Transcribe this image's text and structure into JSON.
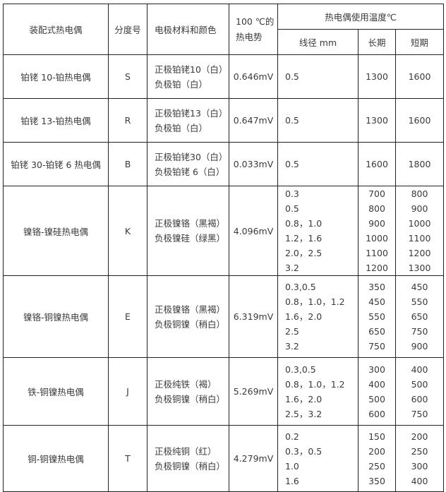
{
  "header": {
    "type": "装配式热电偶",
    "grade": "分度号",
    "material": "电极材料和颜色",
    "emf": "100 ℃的热电势",
    "emf_line1": "100 ℃的",
    "emf_line2": "热电势",
    "temp_group": "热电偶使用温度℃",
    "diameter": "线径 mm",
    "long_term": "长期",
    "short_term": "短期"
  },
  "rows": [
    {
      "type": "铂铑 10-铂热电偶",
      "grade": "S",
      "material": [
        "正极铂铑10（白）",
        "负极铂（白）"
      ],
      "emf": "0.646mV",
      "diameters": [
        "0.5"
      ],
      "long": [
        "1300"
      ],
      "short": [
        "1600"
      ]
    },
    {
      "type": "铂铑 13-铂热电偶",
      "grade": "R",
      "material": [
        "正极铂铑13（白）",
        "负极铂（白）"
      ],
      "emf": "0.647mV",
      "diameters": [
        "0.5"
      ],
      "long": [
        "1300"
      ],
      "short": [
        "1600"
      ]
    },
    {
      "type": "铂铑 30-铂铑 6 热电偶",
      "grade": "B",
      "material": [
        "正极铂铑30（白）",
        "负极铂铑 6（白）"
      ],
      "emf": "0.033mV",
      "diameters": [
        "0.5"
      ],
      "long": [
        "1600"
      ],
      "short": [
        "1800"
      ]
    },
    {
      "type": "镍铬-镍硅热电偶",
      "grade": "K",
      "material": [
        "正极镍铬（黑褐）",
        "负极镍硅（绿黑）"
      ],
      "emf": "4.096mV",
      "diameters": [
        "0.3",
        "0.5",
        "0.8，1.0",
        "1.2，1.6",
        "2.0，2.5",
        "3.2"
      ],
      "long": [
        "700",
        "800",
        "900",
        "1000",
        "1100",
        "1200"
      ],
      "short": [
        "800",
        "900",
        "1000",
        "1100",
        "1200",
        "1300"
      ]
    },
    {
      "type": "镍铬-铜镍热电偶",
      "grade": "E",
      "material": [
        "正极镍铬（黑褐）",
        "负极铜镍（稍白）"
      ],
      "emf": "6.319mV",
      "diameters": [
        "0.3,0.5",
        "0.8，1.0，1.2",
        "1.6，2.0",
        "2.5",
        "3.2"
      ],
      "long": [
        "350",
        "450",
        "550",
        "650",
        "750"
      ],
      "short": [
        "450",
        "550",
        "650",
        "750",
        "900"
      ]
    },
    {
      "type": "铁-铜镍热电偶",
      "grade": "J",
      "material": [
        "正极纯铁（褐）",
        "负极铜镍（稍白）"
      ],
      "emf": "5.269mV",
      "diameters": [
        "0.3,0.5",
        "0.8，1.0，1.2",
        "1.6，2.0",
        "2.5，3.2"
      ],
      "long": [
        "300",
        "400",
        "500",
        "600"
      ],
      "short": [
        "400",
        "500",
        "600",
        "750"
      ]
    },
    {
      "type": "铜-铜镍热电偶",
      "grade": "T",
      "material": [
        "正极纯铜（红）",
        "负极铜镍（稍白）"
      ],
      "emf": "4.279mV",
      "diameters": [
        "0.2",
        "0.3，0.5",
        "1.0",
        "1.6"
      ],
      "long": [
        "150",
        "200",
        "250",
        "350"
      ],
      "short": [
        "200",
        "250",
        "300",
        "400"
      ]
    }
  ]
}
